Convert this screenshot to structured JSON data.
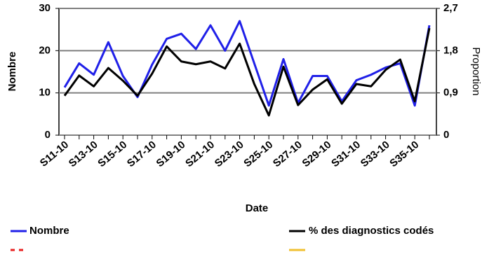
{
  "chart_data": {
    "type": "line",
    "categories": [
      "S11-10",
      null,
      "S13-10",
      null,
      "S15-10",
      null,
      "S17-10",
      null,
      "S19-10",
      null,
      "S21-10",
      null,
      "S23-10",
      null,
      "S25-10",
      null,
      "S27-10",
      null,
      "S29-10",
      null,
      "S31-10",
      null,
      "S33-10",
      null,
      "S35-10",
      null
    ],
    "series": [
      {
        "name": "Nombre",
        "color": "#2020e8",
        "values": [
          11.3,
          17,
          14.3,
          22,
          14,
          9,
          16.7,
          22.8,
          24,
          20.4,
          26,
          20,
          27,
          17,
          7,
          18,
          7.6,
          14,
          14,
          8,
          13,
          14.3,
          16,
          17,
          7,
          26
        ]
      },
      {
        "name": "% des diagnostics codés",
        "color": "#000000",
        "axis": "y2",
        "values": [
          0.84,
          1.27,
          1.04,
          1.43,
          1.16,
          0.84,
          1.31,
          1.89,
          1.57,
          1.51,
          1.57,
          1.42,
          1.95,
          1.09,
          0.42,
          1.46,
          0.64,
          0.97,
          1.19,
          0.67,
          1.09,
          1.04,
          1.39,
          1.61,
          0.72,
          2.28
        ]
      }
    ],
    "xlabel": "Date",
    "ylabel": "Nombre",
    "y2label": "Proportion",
    "ylim": [
      0,
      30
    ],
    "yticks": [
      0,
      10,
      20,
      30
    ],
    "y2lim": [
      0,
      2.7
    ],
    "y2ticks": [
      0,
      {
        "value": 0.9,
        "label": "0,9"
      },
      {
        "value": 1.8,
        "label": "1,8"
      },
      {
        "value": 2.7,
        "label": "2,7"
      }
    ],
    "grid": true
  }
}
